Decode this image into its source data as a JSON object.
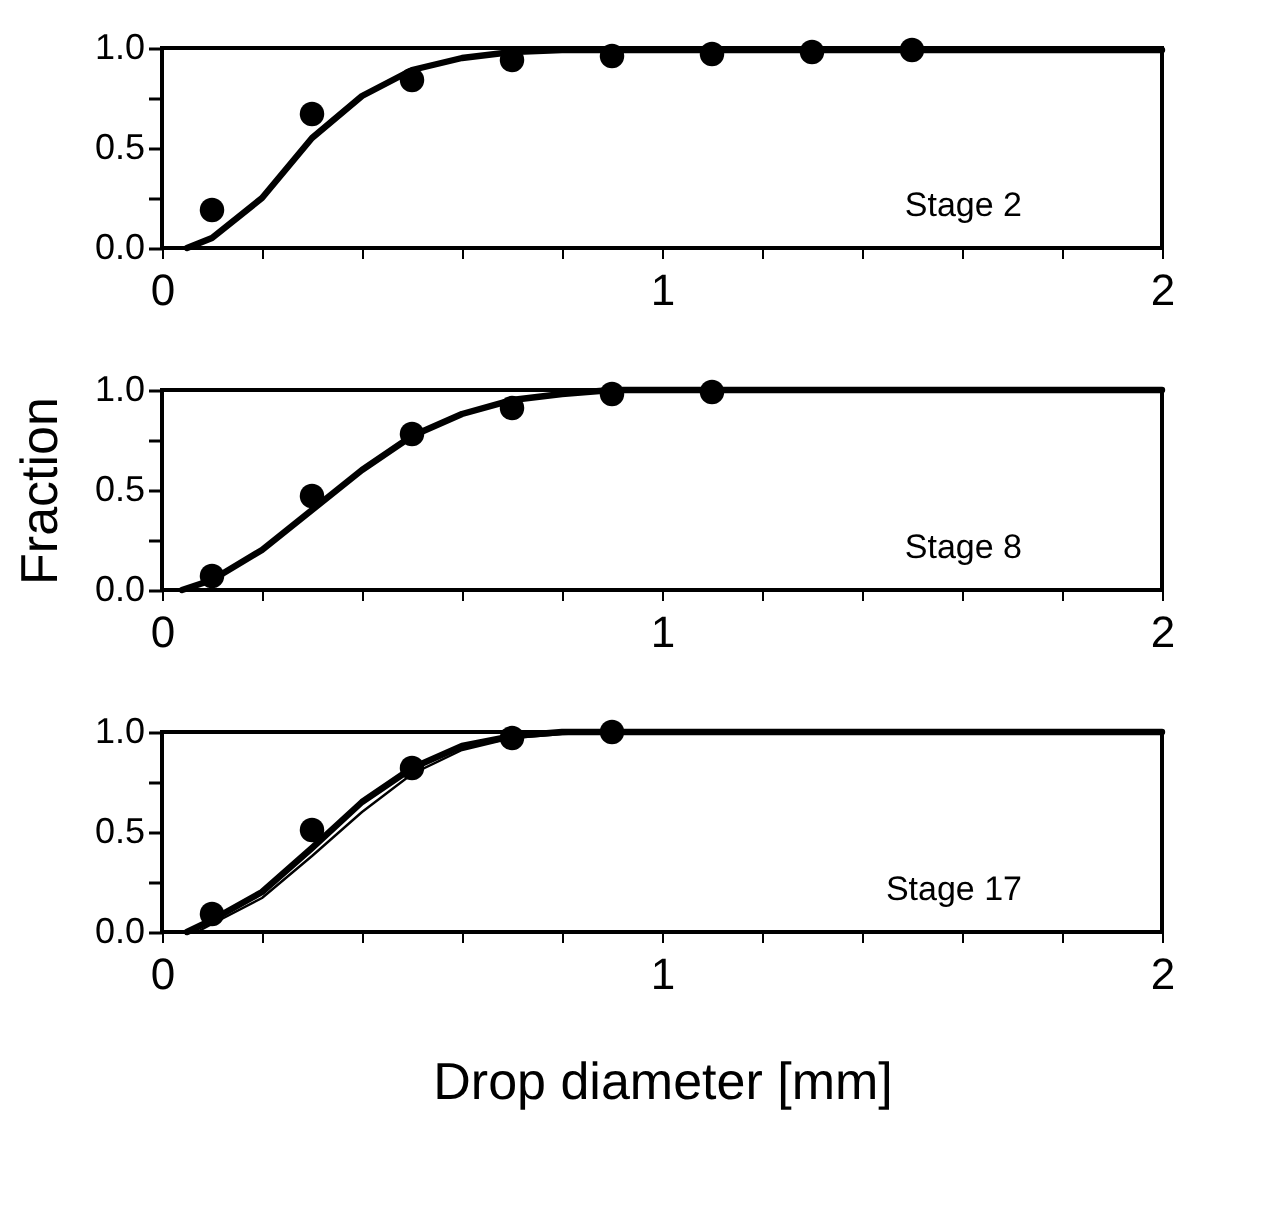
{
  "chart_data": [
    {
      "type": "scatter",
      "annotations": [
        "Stage 2"
      ],
      "xlim": [
        0,
        2
      ],
      "ylim": [
        0,
        1
      ],
      "xticks": [
        0,
        {
          "value": 0.2,
          "label": null
        },
        {
          "value": 0.4,
          "label": null
        },
        {
          "value": 0.6,
          "label": null
        },
        {
          "value": 0.8,
          "label": null
        },
        1,
        {
          "value": 1.2,
          "label": null
        },
        {
          "value": 1.4,
          "label": null
        },
        {
          "value": 1.6,
          "label": null
        },
        {
          "value": 1.8,
          "label": null
        },
        2
      ],
      "yticks": [
        {
          "value": 0,
          "label": "0.0"
        },
        {
          "value": 0.25,
          "label": null
        },
        {
          "value": 0.5,
          "label": "0.5"
        },
        {
          "value": 0.75,
          "label": null
        },
        {
          "value": 1,
          "label": "1.0"
        }
      ],
      "grid": false,
      "legend": false,
      "series": [
        {
          "color": "#000000",
          "marker": "circle",
          "x": [
            0.1,
            0.3,
            0.5,
            0.7,
            0.9,
            1.1,
            1.3,
            1.5
          ],
          "values": [
            0.19,
            0.67,
            0.84,
            0.94,
            0.96,
            0.97,
            0.98,
            0.99
          ]
        },
        {
          "type": "line",
          "color": "#000000",
          "line_style": "solid",
          "x": [
            0.05,
            0.1,
            0.2,
            0.3,
            0.4,
            0.5,
            0.6,
            0.7,
            0.8,
            1.0,
            2.0
          ],
          "values": [
            0.0,
            0.05,
            0.25,
            0.55,
            0.76,
            0.89,
            0.95,
            0.98,
            0.99,
            0.99,
            0.99
          ]
        }
      ]
    },
    {
      "type": "scatter",
      "ylabel": "Fraction",
      "annotations": [
        "Stage 8"
      ],
      "xlim": [
        0,
        2
      ],
      "ylim": [
        0,
        1
      ],
      "xticks": [
        0,
        {
          "value": 0.2,
          "label": null
        },
        {
          "value": 0.4,
          "label": null
        },
        {
          "value": 0.6,
          "label": null
        },
        {
          "value": 0.8,
          "label": null
        },
        1,
        {
          "value": 1.2,
          "label": null
        },
        {
          "value": 1.4,
          "label": null
        },
        {
          "value": 1.6,
          "label": null
        },
        {
          "value": 1.8,
          "label": null
        },
        2
      ],
      "yticks": [
        {
          "value": 0,
          "label": "0.0"
        },
        {
          "value": 0.25,
          "label": null
        },
        {
          "value": 0.5,
          "label": "0.5"
        },
        {
          "value": 0.75,
          "label": null
        },
        {
          "value": 1,
          "label": "1.0"
        }
      ],
      "grid": false,
      "legend": false,
      "series": [
        {
          "color": "#000000",
          "marker": "circle",
          "x": [
            0.1,
            0.3,
            0.5,
            0.7,
            0.9,
            1.1
          ],
          "values": [
            0.07,
            0.47,
            0.78,
            0.91,
            0.98,
            0.99
          ]
        },
        {
          "type": "line",
          "color": "#000000",
          "line_style": "solid",
          "x": [
            0.04,
            0.1,
            0.2,
            0.3,
            0.4,
            0.5,
            0.6,
            0.7,
            0.8,
            0.9,
            2.0
          ],
          "values": [
            0.0,
            0.05,
            0.2,
            0.4,
            0.6,
            0.77,
            0.88,
            0.95,
            0.98,
            1.0,
            1.0
          ]
        }
      ]
    },
    {
      "type": "scatter",
      "xlabel": "Drop diameter [mm]",
      "annotations": [
        "Stage 17"
      ],
      "xlim": [
        0,
        2
      ],
      "ylim": [
        0,
        1
      ],
      "xticks": [
        0,
        {
          "value": 0.2,
          "label": null
        },
        {
          "value": 0.4,
          "label": null
        },
        {
          "value": 0.6,
          "label": null
        },
        {
          "value": 0.8,
          "label": null
        },
        1,
        {
          "value": 1.2,
          "label": null
        },
        {
          "value": 1.4,
          "label": null
        },
        {
          "value": 1.6,
          "label": null
        },
        {
          "value": 1.8,
          "label": null
        },
        2
      ],
      "yticks": [
        {
          "value": 0,
          "label": "0.0"
        },
        {
          "value": 0.25,
          "label": null
        },
        {
          "value": 0.5,
          "label": "0.5"
        },
        {
          "value": 0.75,
          "label": null
        },
        {
          "value": 1,
          "label": "1.0"
        }
      ],
      "grid": false,
      "legend": false,
      "series": [
        {
          "color": "#000000",
          "marker": "circle",
          "x": [
            0.1,
            0.3,
            0.5,
            0.7,
            0.9
          ],
          "values": [
            0.09,
            0.51,
            0.82,
            0.97,
            1.0
          ]
        },
        {
          "type": "line",
          "color": "#000000",
          "line_style": "solid",
          "x": [
            0.05,
            0.1,
            0.2,
            0.3,
            0.4,
            0.5,
            0.6,
            0.7,
            0.8,
            2.0
          ],
          "values": [
            0.0,
            0.06,
            0.2,
            0.42,
            0.65,
            0.82,
            0.93,
            0.98,
            1.0,
            1.0
          ]
        },
        {
          "type": "line",
          "color": "#000000",
          "line_style": "solid",
          "x": [
            0.07,
            0.1,
            0.2,
            0.3,
            0.4,
            0.5,
            0.6,
            0.7,
            0.8,
            0.9,
            2.0
          ],
          "values": [
            0.0,
            0.04,
            0.17,
            0.38,
            0.6,
            0.79,
            0.91,
            0.97,
            0.99,
            1.0,
            1.0
          ]
        }
      ]
    }
  ]
}
